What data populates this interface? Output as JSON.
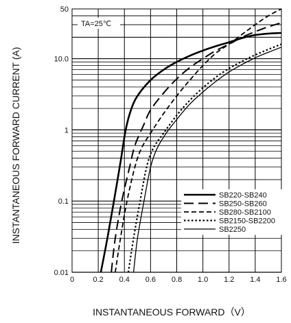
{
  "chart_data": {
    "type": "line",
    "title": "",
    "xlabel": "INSTANTANEOUS FORWARD（V）",
    "ylabel": "INSTANTANEOUS FORWARD CURRENT (A)",
    "annotation": "TA=25℃",
    "xlim": [
      0,
      1.6
    ],
    "ylim": [
      0.01,
      50
    ],
    "yscale": "log",
    "grid": true,
    "legend_position": "bottom-right",
    "x_ticks": [
      {
        "value": 0,
        "label": "0"
      },
      {
        "value": 0.2,
        "label": "0.2"
      },
      {
        "value": 0.4,
        "label": "0.4"
      },
      {
        "value": 0.6,
        "label": "0.6"
      },
      {
        "value": 0.8,
        "label": "0.8"
      },
      {
        "value": 1.0,
        "label": "1.0"
      },
      {
        "value": 1.2,
        "label": "1.2"
      },
      {
        "value": 1.4,
        "label": "1.4"
      },
      {
        "value": 1.6,
        "label": "1.6"
      }
    ],
    "y_ticks": [
      {
        "value": 0.01,
        "label": "0.01"
      },
      {
        "value": 0.1,
        "label": "0.1"
      },
      {
        "value": 1,
        "label": "1"
      },
      {
        "value": 10,
        "label": "10.0"
      },
      {
        "value": 50,
        "label": "50"
      }
    ],
    "series": [
      {
        "name": "SB220-SB240",
        "style": "solid-thick",
        "points": [
          [
            0.22,
            0.01
          ],
          [
            0.27,
            0.03
          ],
          [
            0.32,
            0.1
          ],
          [
            0.37,
            0.35
          ],
          [
            0.41,
            1.0
          ],
          [
            0.45,
            1.9
          ],
          [
            0.5,
            3.0
          ],
          [
            0.6,
            5.0
          ],
          [
            0.7,
            7.0
          ],
          [
            0.8,
            9.0
          ],
          [
            0.9,
            11.0
          ],
          [
            1.0,
            13.0
          ],
          [
            1.1,
            15.0
          ],
          [
            1.2,
            17.0
          ],
          [
            1.3,
            19.5
          ],
          [
            1.4,
            21.5
          ],
          [
            1.5,
            22.5
          ],
          [
            1.6,
            23.0
          ]
        ]
      },
      {
        "name": "SB250-SB260",
        "style": "long-dash",
        "points": [
          [
            0.3,
            0.01
          ],
          [
            0.33,
            0.03
          ],
          [
            0.38,
            0.1
          ],
          [
            0.44,
            0.3
          ],
          [
            0.48,
            0.6
          ],
          [
            0.55,
            1.2
          ],
          [
            0.6,
            1.9
          ],
          [
            0.7,
            3.3
          ],
          [
            0.8,
            5.2
          ],
          [
            0.9,
            7.5
          ],
          [
            1.0,
            10.0
          ],
          [
            1.1,
            13.0
          ],
          [
            1.2,
            16.0
          ],
          [
            1.3,
            20.0
          ],
          [
            1.4,
            24.0
          ],
          [
            1.5,
            28.0
          ],
          [
            1.6,
            32.0
          ]
        ]
      },
      {
        "name": "SB280-SB2100",
        "style": "dash",
        "points": [
          [
            0.33,
            0.01
          ],
          [
            0.37,
            0.03
          ],
          [
            0.42,
            0.1
          ],
          [
            0.48,
            0.3
          ],
          [
            0.53,
            0.55
          ],
          [
            0.6,
            0.9
          ],
          [
            0.7,
            1.7
          ],
          [
            0.8,
            3.0
          ],
          [
            0.9,
            5.0
          ],
          [
            1.0,
            8.0
          ],
          [
            1.1,
            12.0
          ],
          [
            1.2,
            16.0
          ],
          [
            1.3,
            22.0
          ],
          [
            1.4,
            30.0
          ],
          [
            1.5,
            40.0
          ],
          [
            1.6,
            50.0
          ]
        ]
      },
      {
        "name": "SB2150-SB2200",
        "style": "dot",
        "points": [
          [
            0.43,
            0.01
          ],
          [
            0.47,
            0.03
          ],
          [
            0.52,
            0.1
          ],
          [
            0.57,
            0.3
          ],
          [
            0.62,
            0.55
          ],
          [
            0.7,
            0.9
          ],
          [
            0.8,
            1.6
          ],
          [
            0.9,
            2.6
          ],
          [
            1.0,
            3.9
          ],
          [
            1.1,
            5.5
          ],
          [
            1.2,
            7.3
          ],
          [
            1.3,
            9.2
          ],
          [
            1.4,
            11.3
          ],
          [
            1.5,
            13.5
          ],
          [
            1.6,
            16.0
          ]
        ]
      },
      {
        "name": "SB2250",
        "style": "solid-thin",
        "points": [
          [
            0.47,
            0.01
          ],
          [
            0.5,
            0.03
          ],
          [
            0.55,
            0.1
          ],
          [
            0.6,
            0.3
          ],
          [
            0.65,
            0.55
          ],
          [
            0.72,
            0.9
          ],
          [
            0.8,
            1.4
          ],
          [
            0.9,
            2.3
          ],
          [
            1.0,
            3.4
          ],
          [
            1.1,
            4.8
          ],
          [
            1.2,
            6.5
          ],
          [
            1.3,
            8.3
          ],
          [
            1.4,
            10.3
          ],
          [
            1.5,
            12.3
          ],
          [
            1.6,
            14.5
          ]
        ]
      }
    ]
  }
}
